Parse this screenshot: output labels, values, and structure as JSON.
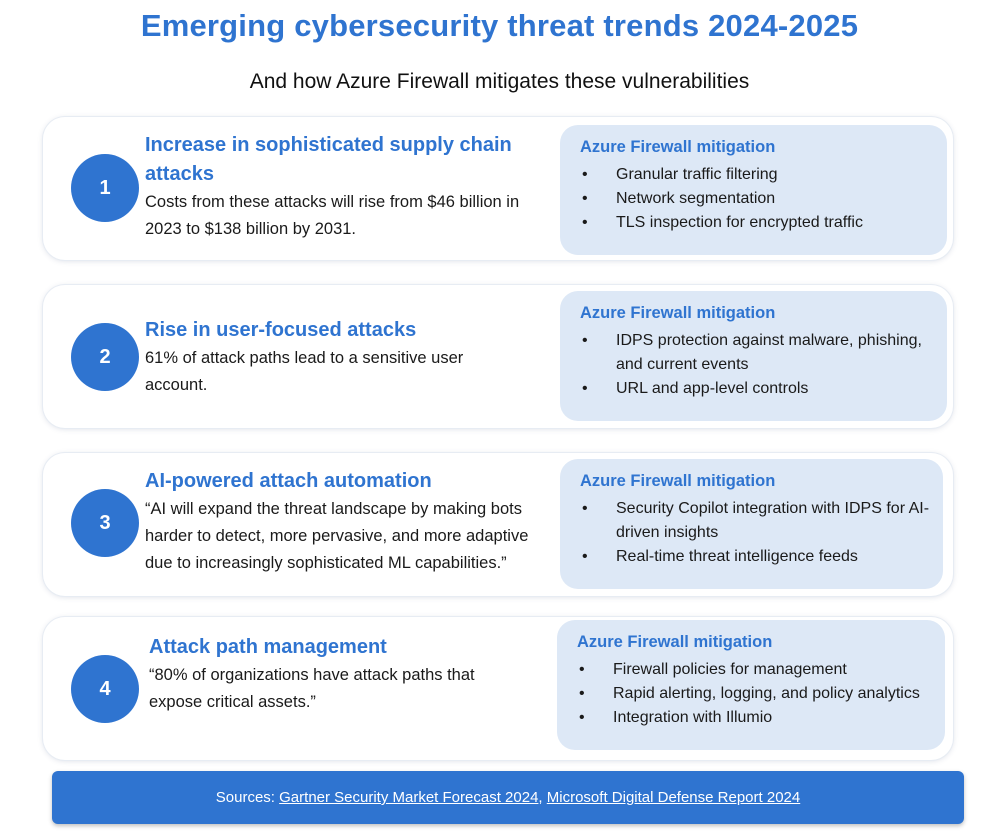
{
  "title": "Emerging cybersecurity threat trends 2024-2025",
  "subtitle": "And how Azure Firewall mitigates these vulnerabilities",
  "colors": {
    "accent": "#2f74d0",
    "panel": "#dde8f6"
  },
  "cards": [
    {
      "number": "1",
      "title": "Increase in sophisticated supply chain attacks",
      "description": "Costs from these attacks will rise from $46 billion in 2023 to $138 billion by 2031.",
      "mitigation_title": "Azure Firewall mitigation",
      "mitigations": [
        "Granular traffic filtering",
        "Network segmentation",
        "TLS inspection for encrypted traffic"
      ]
    },
    {
      "number": "2",
      "title": "Rise in user-focused attacks",
      "description": "61% of attack paths lead to a sensitive user account.",
      "mitigation_title": "Azure Firewall mitigation",
      "mitigations": [
        "IDPS protection against malware, phishing, and current events",
        "URL and app-level controls"
      ]
    },
    {
      "number": "3",
      "title": "AI-powered  attach automation",
      "description": "“AI will expand the threat landscape by making bots harder to detect, more pervasive, and more adaptive due to increasingly sophisticated ML capabilities.”",
      "mitigation_title": "Azure Firewall mitigation",
      "mitigations": [
        "Security Copilot integration with IDPS for AI-driven insights",
        "Real-time threat intelligence feeds"
      ]
    },
    {
      "number": "4",
      "title": "Attack path management",
      "description": "“80% of organizations have attack paths that expose critical assets.”",
      "mitigation_title": "Azure Firewall mitigation",
      "mitigations": [
        "Firewall policies for management",
        "Rapid alerting, logging, and policy analytics",
        "Integration with Illumio"
      ]
    }
  ],
  "footer": {
    "prefix": "Sources: ",
    "link1": "Gartner Security Market Forecast 2024",
    "separator": ", ",
    "link2": "Microsoft Digital Defense Report 2024"
  }
}
